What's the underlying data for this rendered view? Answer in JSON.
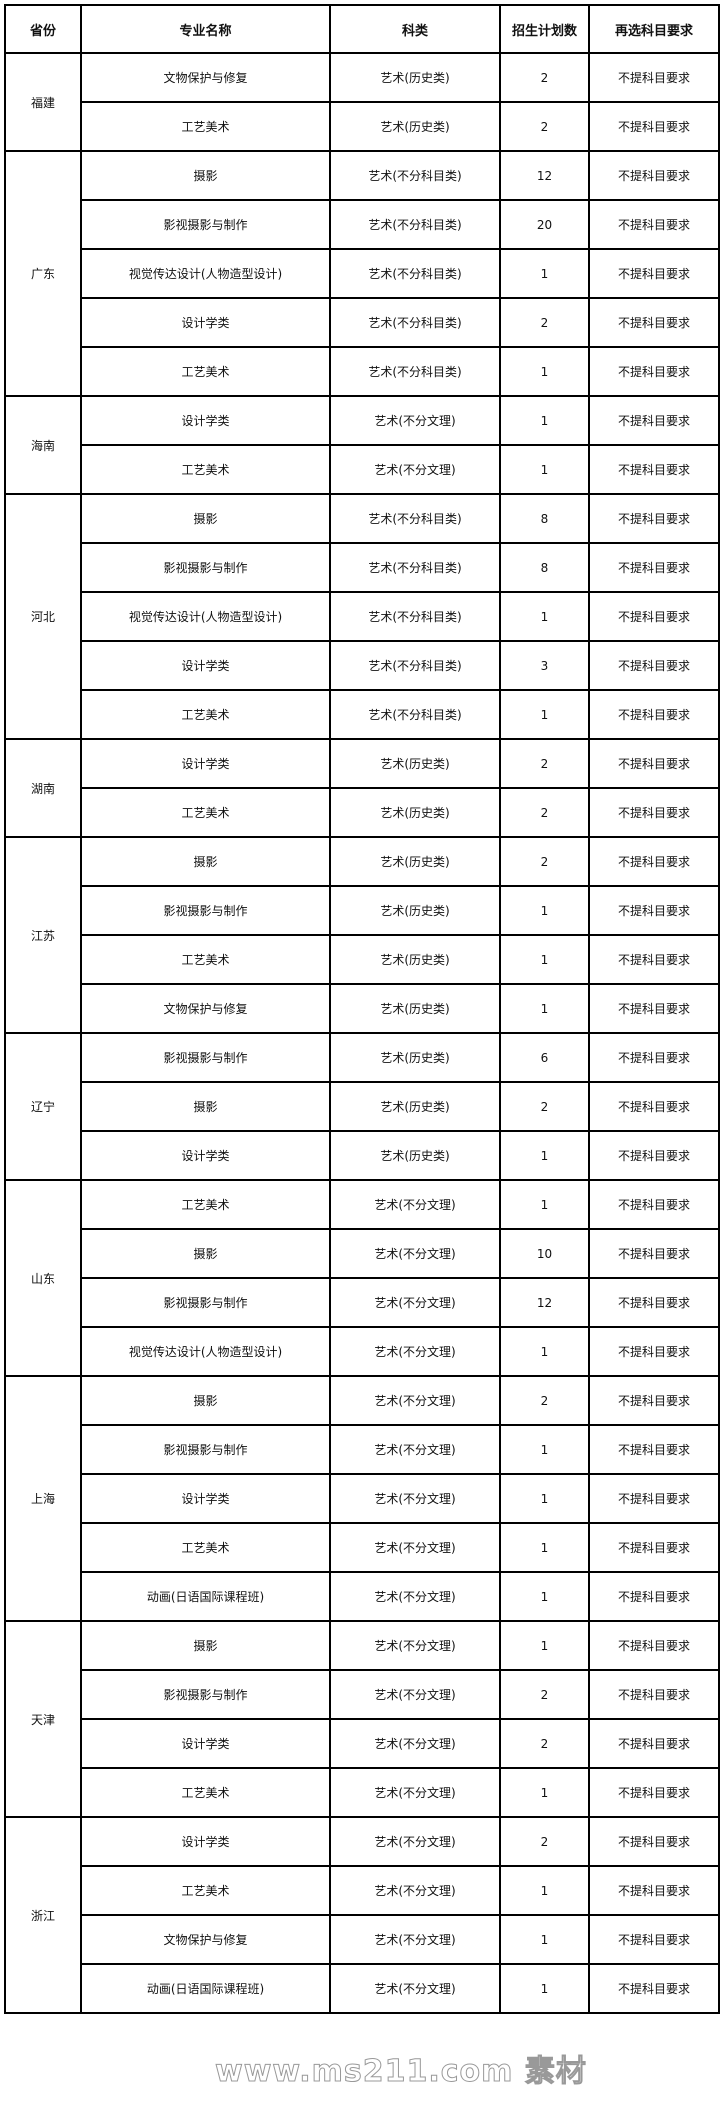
{
  "headers": [
    "省份",
    "专业名称",
    "科类",
    "招生计划数",
    "再选科目要求"
  ],
  "groups": [
    {
      "province": "福建",
      "rows": [
        [
          "文物保护与修复",
          "艺术(历史类)",
          "2",
          "不提科目要求"
        ],
        [
          "工艺美术",
          "艺术(历史类)",
          "2",
          "不提科目要求"
        ]
      ]
    },
    {
      "province": "广东",
      "rows": [
        [
          "摄影",
          "艺术(不分科目类)",
          "12",
          "不提科目要求"
        ],
        [
          "影视摄影与制作",
          "艺术(不分科目类)",
          "20",
          "不提科目要求"
        ],
        [
          "视觉传达设计(人物造型设计)",
          "艺术(不分科目类)",
          "1",
          "不提科目要求"
        ],
        [
          "设计学类",
          "艺术(不分科目类)",
          "2",
          "不提科目要求"
        ],
        [
          "工艺美术",
          "艺术(不分科目类)",
          "1",
          "不提科目要求"
        ]
      ]
    },
    {
      "province": "海南",
      "rows": [
        [
          "设计学类",
          "艺术(不分文理)",
          "1",
          "不提科目要求"
        ],
        [
          "工艺美术",
          "艺术(不分文理)",
          "1",
          "不提科目要求"
        ]
      ]
    },
    {
      "province": "河北",
      "rows": [
        [
          "摄影",
          "艺术(不分科目类)",
          "8",
          "不提科目要求"
        ],
        [
          "影视摄影与制作",
          "艺术(不分科目类)",
          "8",
          "不提科目要求"
        ],
        [
          "视觉传达设计(人物造型设计)",
          "艺术(不分科目类)",
          "1",
          "不提科目要求"
        ],
        [
          "设计学类",
          "艺术(不分科目类)",
          "3",
          "不提科目要求"
        ],
        [
          "工艺美术",
          "艺术(不分科目类)",
          "1",
          "不提科目要求"
        ]
      ]
    },
    {
      "province": "湖南",
      "rows": [
        [
          "设计学类",
          "艺术(历史类)",
          "2",
          "不提科目要求"
        ],
        [
          "工艺美术",
          "艺术(历史类)",
          "2",
          "不提科目要求"
        ]
      ]
    },
    {
      "province": "江苏",
      "rows": [
        [
          "摄影",
          "艺术(历史类)",
          "2",
          "不提科目要求"
        ],
        [
          "影视摄影与制作",
          "艺术(历史类)",
          "1",
          "不提科目要求"
        ],
        [
          "工艺美术",
          "艺术(历史类)",
          "1",
          "不提科目要求"
        ],
        [
          "文物保护与修复",
          "艺术(历史类)",
          "1",
          "不提科目要求"
        ]
      ]
    },
    {
      "province": "辽宁",
      "rows": [
        [
          "影视摄影与制作",
          "艺术(历史类)",
          "6",
          "不提科目要求"
        ],
        [
          "摄影",
          "艺术(历史类)",
          "2",
          "不提科目要求"
        ],
        [
          "设计学类",
          "艺术(历史类)",
          "1",
          "不提科目要求"
        ]
      ]
    },
    {
      "province": "山东",
      "rows": [
        [
          "工艺美术",
          "艺术(不分文理)",
          "1",
          "不提科目要求"
        ],
        [
          "摄影",
          "艺术(不分文理)",
          "10",
          "不提科目要求"
        ],
        [
          "影视摄影与制作",
          "艺术(不分文理)",
          "12",
          "不提科目要求"
        ],
        [
          "视觉传达设计(人物造型设计)",
          "艺术(不分文理)",
          "1",
          "不提科目要求"
        ]
      ]
    },
    {
      "province": "上海",
      "rows": [
        [
          "摄影",
          "艺术(不分文理)",
          "2",
          "不提科目要求"
        ],
        [
          "影视摄影与制作",
          "艺术(不分文理)",
          "1",
          "不提科目要求"
        ],
        [
          "设计学类",
          "艺术(不分文理)",
          "1",
          "不提科目要求"
        ],
        [
          "工艺美术",
          "艺术(不分文理)",
          "1",
          "不提科目要求"
        ],
        [
          "动画(日语国际课程班)",
          "艺术(不分文理)",
          "1",
          "不提科目要求"
        ]
      ]
    },
    {
      "province": "天津",
      "rows": [
        [
          "摄影",
          "艺术(不分文理)",
          "1",
          "不提科目要求"
        ],
        [
          "影视摄影与制作",
          "艺术(不分文理)",
          "2",
          "不提科目要求"
        ],
        [
          "设计学类",
          "艺术(不分文理)",
          "2",
          "不提科目要求"
        ],
        [
          "工艺美术",
          "艺术(不分文理)",
          "1",
          "不提科目要求"
        ]
      ]
    },
    {
      "province": "浙江",
      "rows": [
        [
          "设计学类",
          "艺术(不分文理)",
          "2",
          "不提科目要求"
        ],
        [
          "工艺美术",
          "艺术(不分文理)",
          "1",
          "不提科目要求"
        ],
        [
          "文物保护与修复",
          "艺术(不分文理)",
          "1",
          "不提科目要求"
        ],
        [
          "动画(日语国际课程班)",
          "艺术(不分文理)",
          "1",
          "不提科目要求"
        ]
      ]
    }
  ],
  "watermark": "www.ms211.com 素材"
}
